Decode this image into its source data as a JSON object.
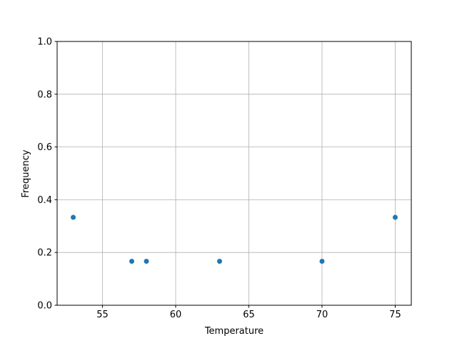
{
  "chart_data": {
    "type": "scatter",
    "title": "",
    "xlabel": "Temperature",
    "ylabel": "Frequency",
    "xlim": [
      51.9,
      76.1
    ],
    "ylim": [
      0,
      1.0
    ],
    "x_ticks": [
      55,
      60,
      65,
      70,
      75
    ],
    "x_tick_labels": [
      "55",
      "60",
      "65",
      "70",
      "75"
    ],
    "y_ticks": [
      0,
      0.2,
      0.4,
      0.6,
      0.8,
      1.0
    ],
    "y_tick_labels": [
      "0.0",
      "0.2",
      "0.4",
      "0.6",
      "0.8",
      "1.0"
    ],
    "grid": true,
    "color": "#1f77b4",
    "points": [
      {
        "x": 53,
        "y": 0.3333
      },
      {
        "x": 57,
        "y": 0.1667
      },
      {
        "x": 58,
        "y": 0.1667
      },
      {
        "x": 63,
        "y": 0.1667
      },
      {
        "x": 70,
        "y": 0.1667
      },
      {
        "x": 75,
        "y": 0.3333
      }
    ]
  }
}
